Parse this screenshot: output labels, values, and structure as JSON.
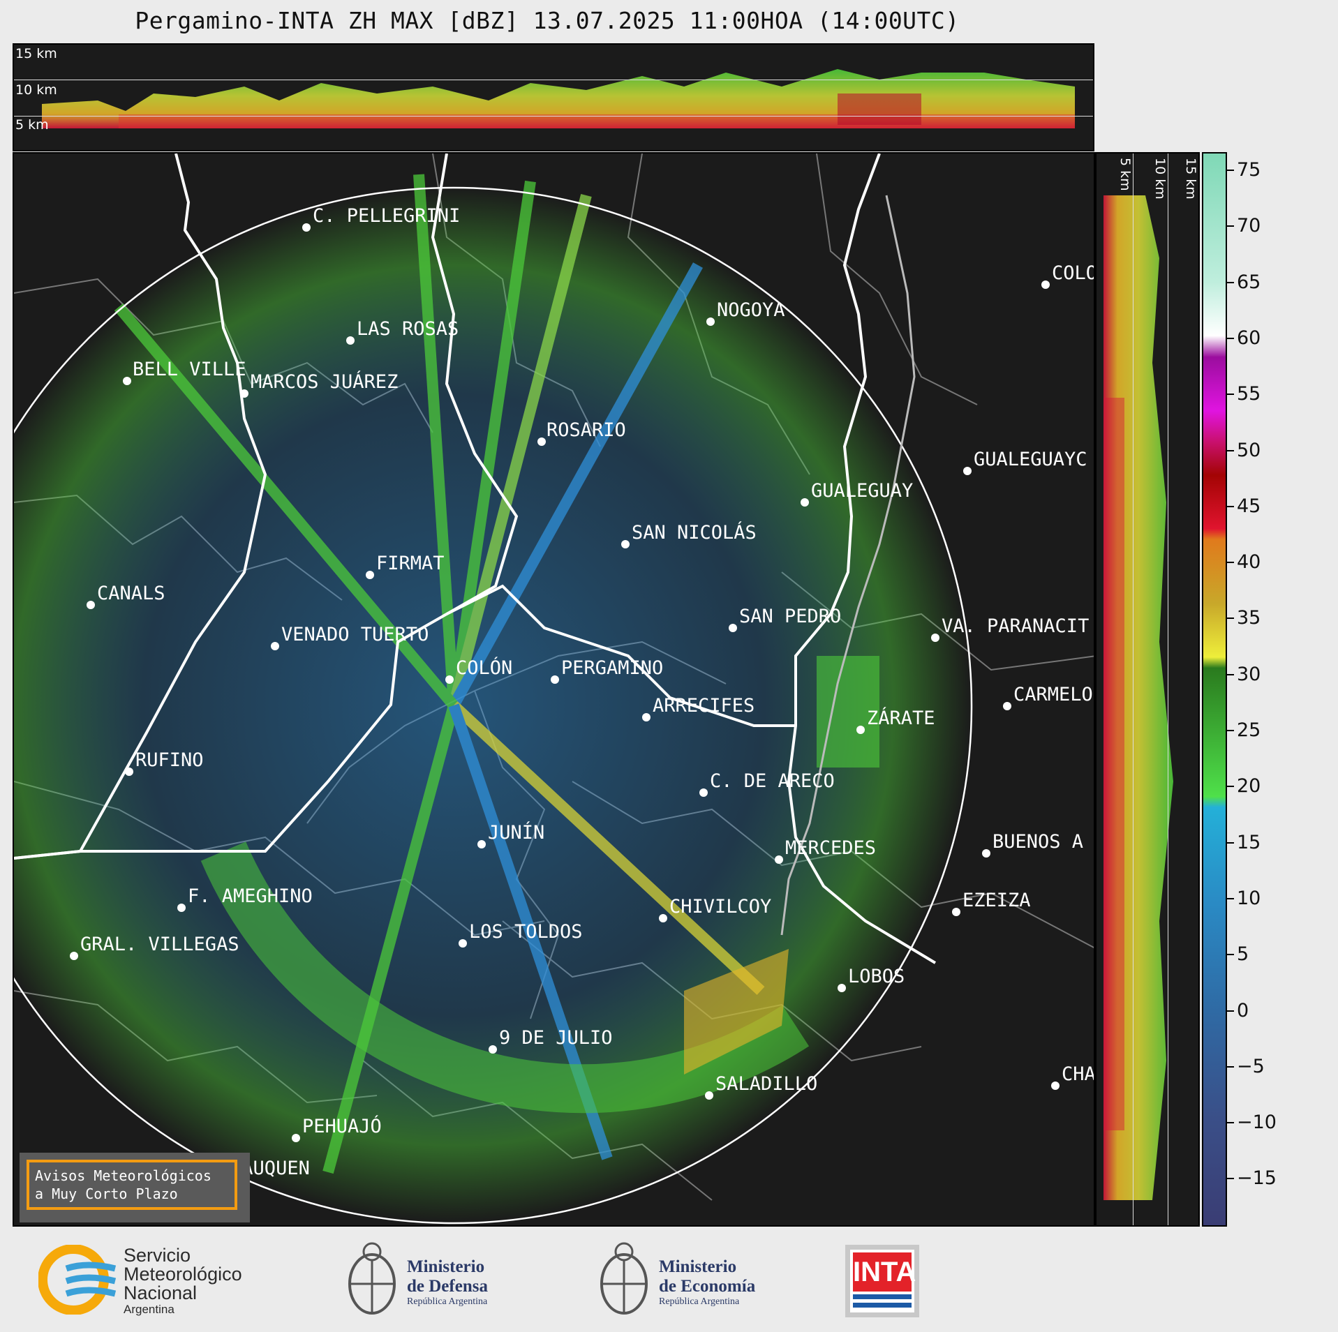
{
  "title": "Pergamino-INTA ZH MAX [dBZ] 13.07.2025 11:00HOA (14:00UTC)",
  "height_labels": [
    "15 km",
    "10 km",
    "5 km"
  ],
  "colorbar": {
    "ticks": [
      "75",
      "70",
      "65",
      "60",
      "55",
      "50",
      "45",
      "40",
      "35",
      "30",
      "25",
      "20",
      "15",
      "10",
      "5",
      "0",
      "−5",
      "−10",
      "−15"
    ]
  },
  "cities": [
    {
      "name": "C. PELLEGRINI"
    },
    {
      "name": "LAS ROSAS"
    },
    {
      "name": "BELL VILLE"
    },
    {
      "name": "MARCOS JUÁREZ"
    },
    {
      "name": "NOGOYA"
    },
    {
      "name": "ROSARIO"
    },
    {
      "name": "GUALEGUAY"
    },
    {
      "name": "GUALEGUAYC"
    },
    {
      "name": "COLO"
    },
    {
      "name": "SAN NICOLÁS"
    },
    {
      "name": "FIRMAT"
    },
    {
      "name": "CANALS"
    },
    {
      "name": "SAN PEDRO"
    },
    {
      "name": "VA. PARANACIT"
    },
    {
      "name": "VENADO TUERTO"
    },
    {
      "name": "COLÓN"
    },
    {
      "name": "PERGAMINO"
    },
    {
      "name": "ARRECIFES"
    },
    {
      "name": "ZÁRATE"
    },
    {
      "name": "CARMELO"
    },
    {
      "name": "RUFINO"
    },
    {
      "name": "C. DE ARECO"
    },
    {
      "name": "JUNÍN"
    },
    {
      "name": "MERCEDES"
    },
    {
      "name": "BUENOS A"
    },
    {
      "name": "F. AMEGHINO"
    },
    {
      "name": "EZEIZA"
    },
    {
      "name": "CHIVILCOY"
    },
    {
      "name": "LOS TOLDOS"
    },
    {
      "name": "GRAL. VILLEGAS"
    },
    {
      "name": "LOBOS"
    },
    {
      "name": "9 DE JULIO"
    },
    {
      "name": "CHA"
    },
    {
      "name": "SALADILLO"
    },
    {
      "name": "PEHUAJÓ"
    },
    {
      "name": "TRENQUE LAUQUEN"
    }
  ],
  "warning": {
    "line1": "Avisos Meteorológicos",
    "line2": "a Muy Corto Plazo"
  },
  "logos": {
    "smn": {
      "line1": "Servicio",
      "line2": "Meteorológico",
      "line3": "Nacional",
      "line4": "Argentina"
    },
    "defensa": {
      "line1": "Ministerio",
      "line2": "de Defensa",
      "line3": "República Argentina"
    },
    "economia": {
      "line1": "Ministerio",
      "line2": "de Economía",
      "line3": "República Argentina"
    },
    "inta": {
      "text": "INTA"
    }
  }
}
